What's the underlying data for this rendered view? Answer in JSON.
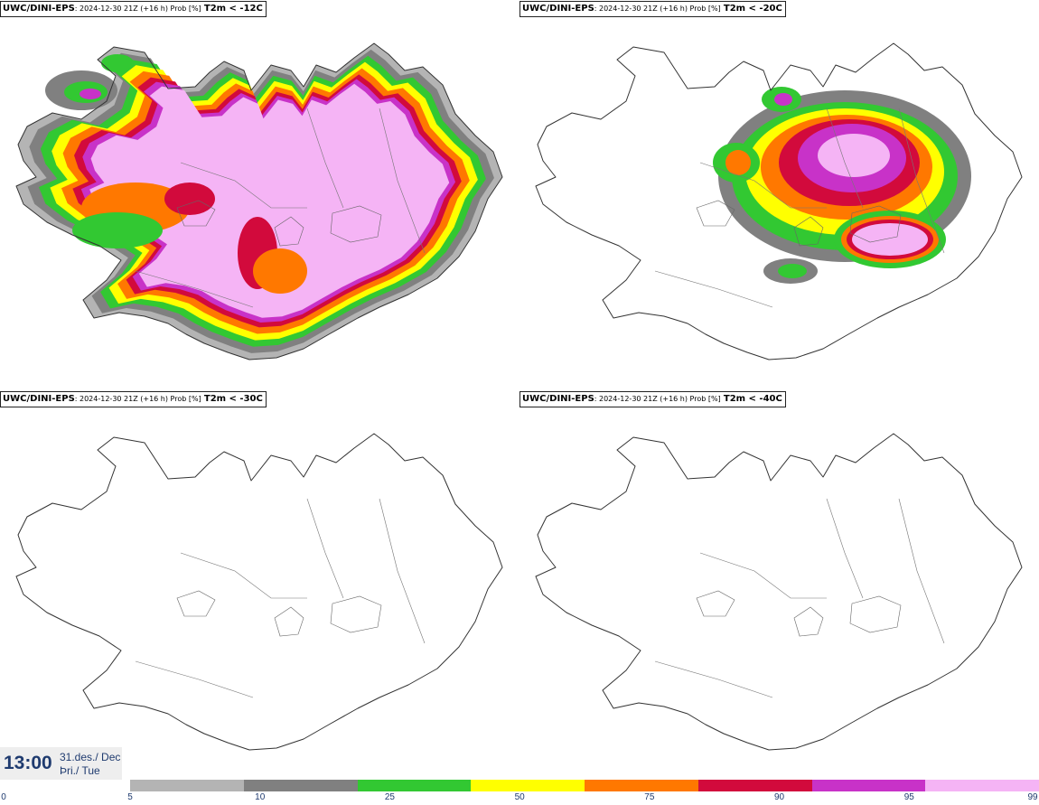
{
  "panels": [
    {
      "model": "UWC/DINI-EPS",
      "meta": ": 2024-12-30 21Z (+16 h) Prob [%]",
      "param": "T2m < -12C",
      "coverage": "extensive"
    },
    {
      "model": "UWC/DINI-EPS",
      "meta": ": 2024-12-30 21Z (+16 h) Prob [%]",
      "param": "T2m < -20C",
      "coverage": "partial"
    },
    {
      "model": "UWC/DINI-EPS",
      "meta": ": 2024-12-30 21Z (+16 h) Prob [%]",
      "param": "T2m < -30C",
      "coverage": "none"
    },
    {
      "model": "UWC/DINI-EPS",
      "meta": ": 2024-12-30 21Z (+16 h) Prob [%]",
      "param": "T2m < -40C",
      "coverage": "none"
    }
  ],
  "time_box": {
    "clock": "13:00",
    "date_line1": "31.des./ Dec",
    "date_line2": "Þri./ Tue"
  },
  "legend": {
    "ticks": [
      "0",
      "5",
      "10",
      "25",
      "50",
      "75",
      "90",
      "95",
      "99"
    ],
    "colors": [
      "#b4b4b4",
      "#808080",
      "#32c832",
      "#ffff00",
      "#ff7800",
      "#d20a3c",
      "#c832c8",
      "#f5b4f5"
    ]
  }
}
